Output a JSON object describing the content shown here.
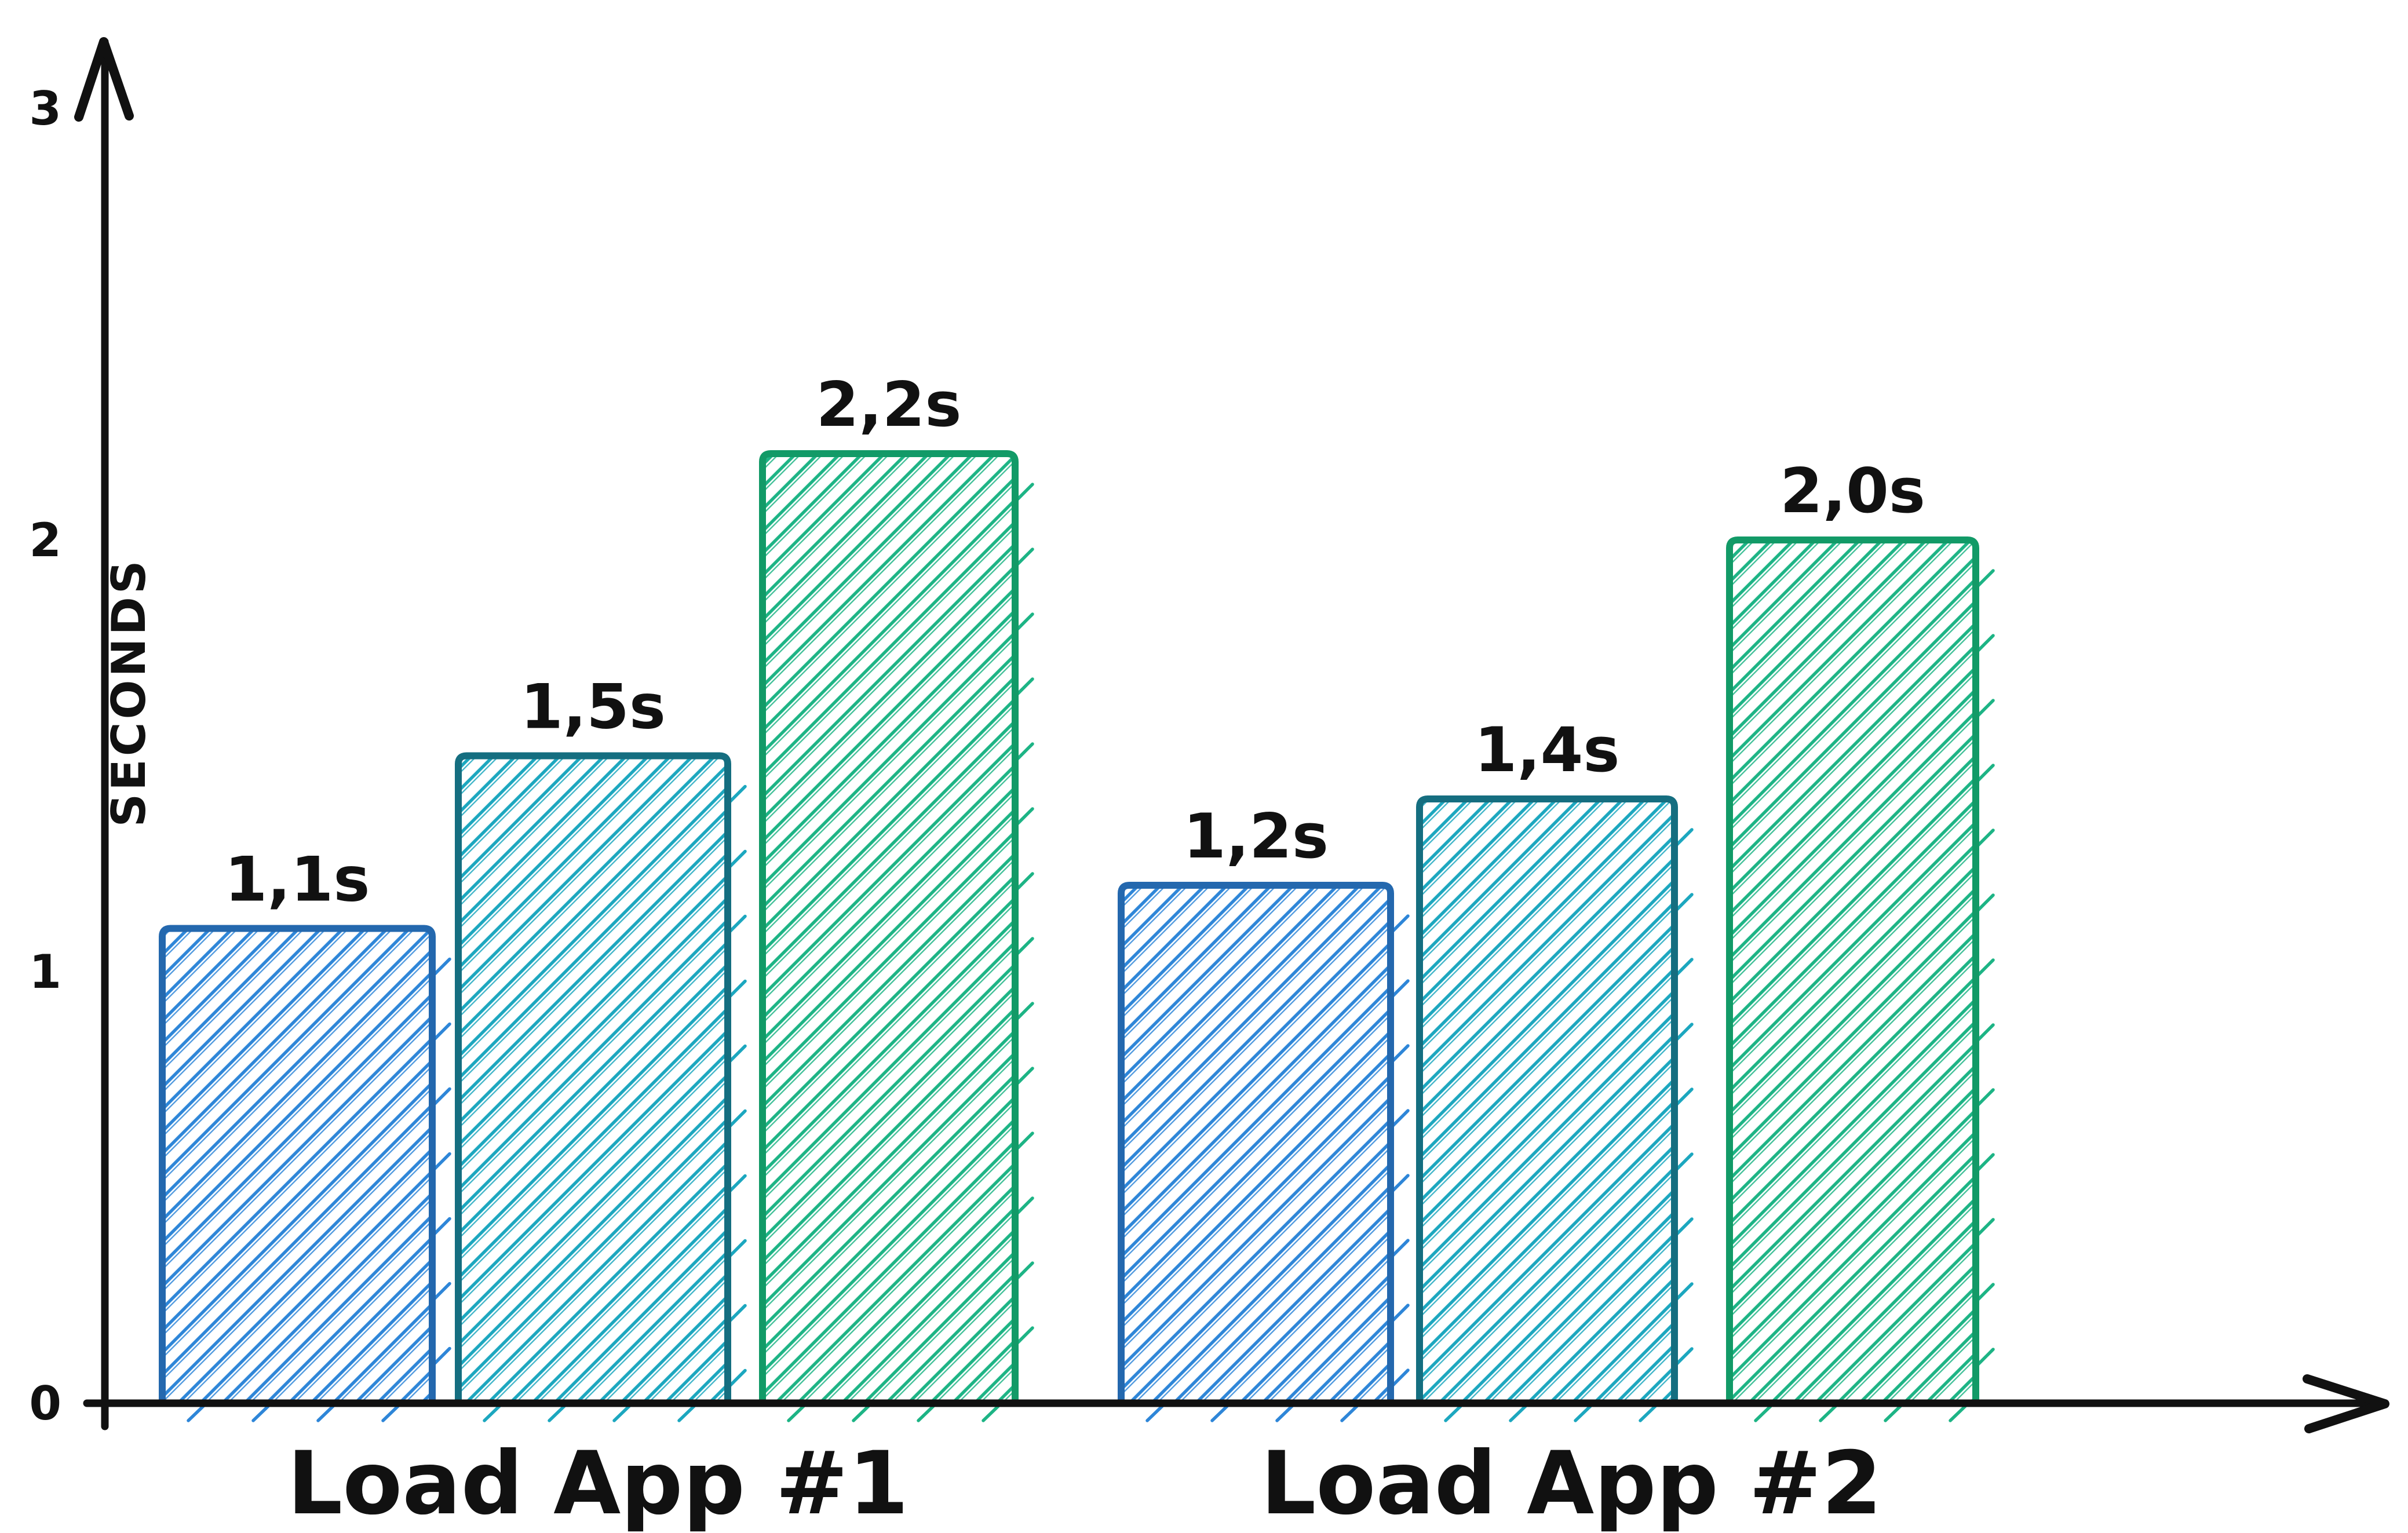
{
  "chart_data": {
    "type": "bar",
    "title": "",
    "xlabel": "",
    "ylabel": "SECONDS",
    "ylim": [
      0,
      3
    ],
    "y_ticks": [
      "0",
      "1",
      "2",
      "3"
    ],
    "grid": false,
    "legend": false,
    "style": "hand-drawn hatched bars",
    "background": "#ffffff",
    "axis_color": "#111111",
    "groups": [
      {
        "label": "Load App #1",
        "bars": [
          {
            "value": 1.1,
            "label": "1,1s",
            "color_key": "blue"
          },
          {
            "value": 1.5,
            "label": "1,5s",
            "color_key": "teal"
          },
          {
            "value": 2.2,
            "label": "2,2s",
            "color_key": "green"
          }
        ]
      },
      {
        "label": "Load App #2",
        "bars": [
          {
            "value": 1.2,
            "label": "1,2s",
            "color_key": "blue"
          },
          {
            "value": 1.4,
            "label": "1,4s",
            "color_key": "teal"
          },
          {
            "value": 2.0,
            "label": "2,0s",
            "color_key": "green"
          }
        ]
      }
    ],
    "colors": {
      "blue": {
        "hatch": "#2e86d8",
        "border": "#2468ae"
      },
      "teal": {
        "hatch": "#1ca7bf",
        "border": "#156e80"
      },
      "green": {
        "hatch": "#1db485",
        "border": "#129a67"
      }
    }
  }
}
